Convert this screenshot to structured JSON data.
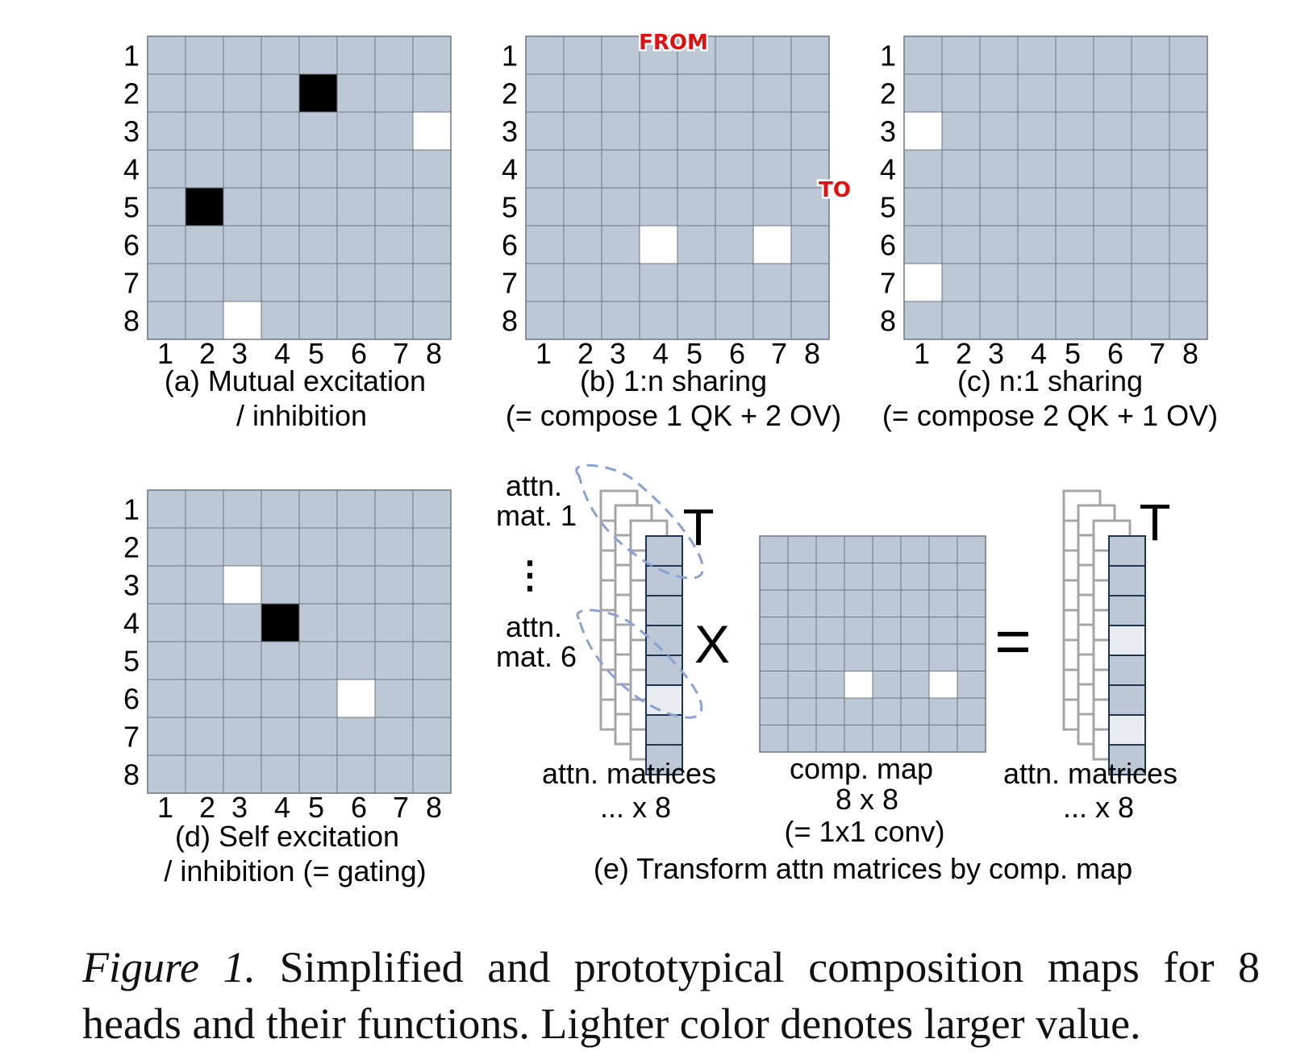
{
  "colors": {
    "cell": "#bcc8d5",
    "grid_line": "#6c7684",
    "high": "#ffffff",
    "low": "#000000",
    "mid": "#e8ecf1",
    "stack_outline": "#a5a5a5",
    "front_outline": "#1f3550",
    "dashed": "#88a2d6",
    "red_label": "#e01010"
  },
  "row_labels": [
    "1",
    "2",
    "3",
    "4",
    "5",
    "6",
    "7",
    "8"
  ],
  "col_labels": [
    "1",
    "2",
    "3",
    "4",
    "5",
    "6",
    "7",
    "8"
  ],
  "panels": {
    "a": {
      "caption": [
        "(a) Mutual excitation",
        "/ inhibition"
      ],
      "white_cells": [
        [
          3,
          8
        ],
        [
          8,
          3
        ]
      ],
      "black_cells": [
        [
          2,
          5
        ],
        [
          5,
          2
        ]
      ]
    },
    "b": {
      "caption": [
        "(b) 1:n sharing",
        "(= compose 1 QK + 2 OV)"
      ],
      "white_cells": [
        [
          6,
          4
        ],
        [
          6,
          7
        ]
      ],
      "black_cells": [],
      "from_label": "FROM",
      "to_label": "TO"
    },
    "c": {
      "caption": [
        "(c) n:1 sharing",
        "(= compose 2 QK + 1 OV)"
      ],
      "white_cells": [
        [
          3,
          1
        ],
        [
          7,
          1
        ]
      ],
      "black_cells": []
    },
    "d": {
      "caption": [
        "(d) Self excitation",
        "/ inhibition (= gating)"
      ],
      "white_cells": [
        [
          3,
          3
        ],
        [
          6,
          6
        ]
      ],
      "black_cells": [
        [
          4,
          4
        ]
      ]
    }
  },
  "panel_e": {
    "attn_mat_1": [
      "attn.",
      "mat. 1"
    ],
    "vdots": "⋮",
    "attn_mat_6": [
      "attn.",
      "mat. 6"
    ],
    "transpose": "T",
    "times": "X",
    "equals": "=",
    "left_stack_label": [
      "attn. matrices",
      "... x 8"
    ],
    "comp_map_label": [
      "comp. map",
      "8 x 8",
      "(= 1x1 conv)"
    ],
    "right_stack_label": [
      "attn. matrices",
      "... x 8"
    ],
    "comp_map_white_cells": [
      [
        6,
        4
      ],
      [
        6,
        7
      ]
    ],
    "left_front_light_rows": [
      6
    ],
    "right_front_light_rows": [
      4,
      7
    ],
    "caption": "(e) Transform attn matrices by comp. map"
  },
  "figure_caption": {
    "lead": "Figure 1.",
    "text": "Simplified and prototypical composition maps for 8 heads and their functions. Lighter color denotes larger value."
  }
}
